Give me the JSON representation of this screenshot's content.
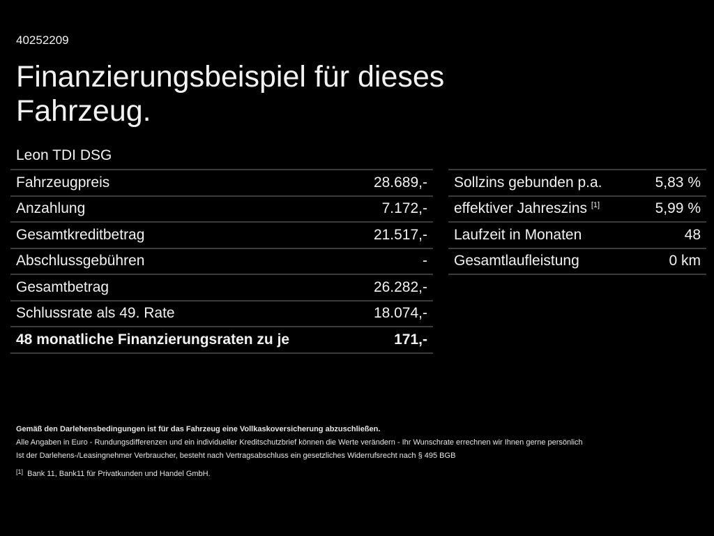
{
  "id": "40252209",
  "title": "Finanzierungsbeispiel für dieses Fahrzeug.",
  "model": "Leon TDI DSG",
  "left_rows": [
    {
      "label": "Fahrzeugpreis",
      "value": "28.689,-"
    },
    {
      "label": "Anzahlung",
      "value": "7.172,-"
    },
    {
      "label": "Gesamtkreditbetrag",
      "value": "21.517,-"
    },
    {
      "label": "Abschlussgebühren",
      "value": "-"
    },
    {
      "label": "Gesamtbetrag",
      "value": "26.282,-"
    },
    {
      "label": "Schlussrate als 49. Rate",
      "value": "18.074,-"
    },
    {
      "label": "48 monatliche Finanzierungsraten zu je",
      "value": "171,-"
    }
  ],
  "right_rows": [
    {
      "label": "Sollzins gebunden p.a.",
      "sup": "",
      "value": "5,83 %"
    },
    {
      "label": "effektiver Jahreszins",
      "sup": "[1]",
      "value": "5,99 %"
    },
    {
      "label": "Laufzeit in Monaten",
      "sup": "",
      "value": "48"
    },
    {
      "label": "Gesamtlaufleistung",
      "sup": "",
      "value": "0 km"
    }
  ],
  "notes": {
    "bold": "Gemäß den Darlehensbedingungen ist für das Fahrzeug eine Vollkaskoversicherung abzuschließen.",
    "line1": "Alle Angaben in Euro - Rundungsdifferenzen und ein individueller Kreditschutzbrief können die Werte verändern - Ihr Wunschrate errechnen wir Ihnen gerne persönlich",
    "line2": "Ist der Darlehens-/Leasingnehmer Verbraucher, besteht nach Vertragsabschluss ein gesetzliches Widerrufsrecht nach § 495 BGB",
    "footnote_mark": "[1]",
    "footnote": "Bank 11, Bank11 für Privatkunden und Handel GmbH."
  }
}
